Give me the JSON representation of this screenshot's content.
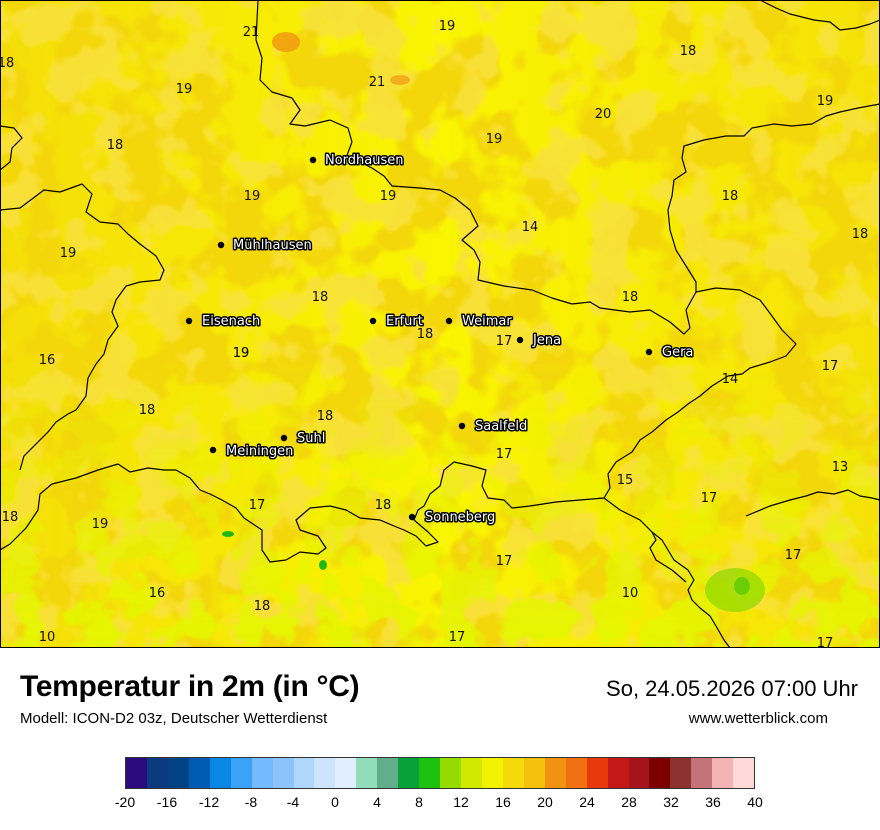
{
  "map": {
    "cities": [
      {
        "name": "Nordhausen"
      },
      {
        "name": "Mühlhausen"
      },
      {
        "name": "Eisenach"
      },
      {
        "name": "Erfurt"
      },
      {
        "name": "Weimar"
      },
      {
        "name": "Jena"
      },
      {
        "name": "Gera"
      },
      {
        "name": "Saalfeld"
      },
      {
        "name": "Suhl"
      },
      {
        "name": "Meiningen"
      },
      {
        "name": "Sonneberg"
      }
    ],
    "temperatures": [
      "21",
      "19",
      "18",
      "19",
      "21",
      "18",
      "19",
      "20",
      "19",
      "18",
      "19",
      "18",
      "19",
      "19",
      "14",
      "18",
      "19",
      "18",
      "18",
      "17",
      "18",
      "16",
      "19",
      "18",
      "17",
      "14",
      "18",
      "17",
      "17",
      "13",
      "15",
      "17",
      "18",
      "17",
      "18",
      "19",
      "17",
      "17",
      "16",
      "18",
      "10",
      "10",
      "17",
      "17"
    ],
    "colors": {
      "base": "#f5d90b",
      "orange": "#f3c40c",
      "yellow": "#f3f400",
      "lime": "#c8e800",
      "green": "#8ad800",
      "deepgreen": "#22b611",
      "border": "#000000"
    }
  },
  "footer": {
    "title": "Temperatur in 2m (in °C)",
    "model": "Modell: ICON-D2 03z, Deutscher Wetterdienst",
    "datetime": "So, 24.05.2026 07:00 Uhr",
    "website": "www.wetterblick.com"
  },
  "legend": {
    "colors": [
      "#2b0a7e",
      "#0b3a7f",
      "#004384",
      "#005bb3",
      "#0a86e5",
      "#3aa3f8",
      "#76bafe",
      "#8dc3fd",
      "#afd6fd",
      "#cde4fe",
      "#e0eefe",
      "#90dcbb",
      "#62ae8a",
      "#06a139",
      "#1ec10f",
      "#94dc00",
      "#cfe900",
      "#f2f300",
      "#f5d90b",
      "#f4c20c",
      "#f29211",
      "#f07012",
      "#e8390d",
      "#c41718",
      "#a5141a",
      "#7c0000",
      "#8c3330",
      "#c47478",
      "#f4b2b2",
      "#ffd9d9"
    ],
    "ticks": [
      "-20",
      "-16",
      "-12",
      "-8",
      "-4",
      "0",
      "4",
      "8",
      "12",
      "16",
      "20",
      "24",
      "28",
      "32",
      "36",
      "40"
    ]
  }
}
